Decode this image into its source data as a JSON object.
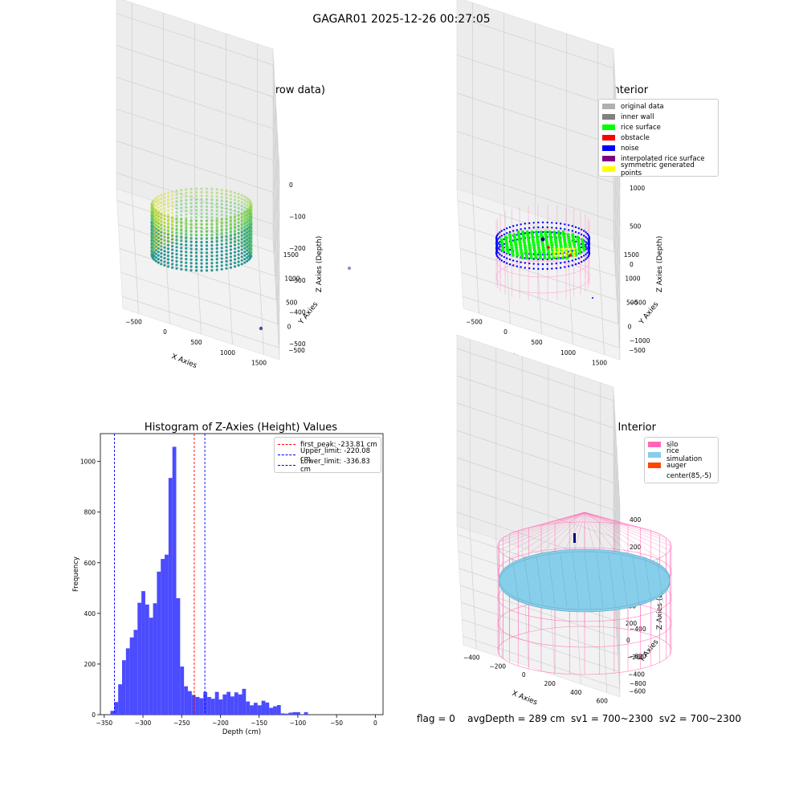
{
  "figure": {
    "suptitle": "GAGAR01 2025-12-26 00:27:05",
    "footer": "flag = 0    avgDepth = 289 cm  sv1 = 700~2300  sv2 = 700~2300"
  },
  "chart_data": [
    {
      "type": "scatter",
      "subtype": "3d",
      "title": "3D Plot of Silo Interior(row data)",
      "xlabel": "X Axies",
      "ylabel": "Y Axies",
      "zlabel": "Z Axies (Depth)",
      "x_ticks": [
        "−500",
        "0",
        "500",
        "1000",
        "1500"
      ],
      "y_ticks": [
        "−500",
        "0",
        "500",
        "1000",
        "1500"
      ],
      "z_ticks": [
        "0",
        "−100",
        "−200",
        "−300",
        "−400",
        "−500"
      ],
      "xlim": [
        -600,
        1600
      ],
      "ylim": [
        -600,
        1800
      ],
      "zlim": [
        -560,
        20
      ],
      "colormap": "viridis",
      "note_values": {
        "ring_depth_range": [
          -460,
          -160
        ],
        "outlier_points": 2
      }
    },
    {
      "type": "scatter",
      "subtype": "3d",
      "title": "3D classify of Silo Interior",
      "xlabel": "X Axies",
      "ylabel": "Y Axies",
      "zlabel": "Z Axies (Depth)",
      "x_ticks": [
        "−500",
        "0",
        "500",
        "1000",
        "1500"
      ],
      "y_ticks": [
        "−500",
        "0",
        "500",
        "1000",
        "1500"
      ],
      "z_ticks": [
        "1000",
        "500",
        "0",
        "−500",
        "−1000"
      ],
      "legend": [
        {
          "label": "original data",
          "color": "#b0b0b0"
        },
        {
          "label": "inner wall",
          "color": "#808080"
        },
        {
          "label": "rice surface",
          "color": "#00ff00"
        },
        {
          "label": "obstacle",
          "color": "#ff0000"
        },
        {
          "label": "noise",
          "color": "#0000ff"
        },
        {
          "label": "interpolated rice surface",
          "color": "#800080"
        },
        {
          "label": "symmetric generated points",
          "color": "#ffff00"
        }
      ],
      "legend_position": "top-right"
    },
    {
      "type": "bar",
      "subtype": "histogram",
      "title": "Histogram of Z-Axies (Height) Values",
      "xlabel": "Depth (cm)",
      "ylabel": "Frequency",
      "xlim": [
        -355,
        10
      ],
      "ylim": [
        0,
        1110
      ],
      "x_ticks": [
        -350,
        -300,
        -250,
        -200,
        -150,
        -100,
        -50,
        0
      ],
      "y_ticks": [
        0,
        200,
        400,
        600,
        800,
        1000
      ],
      "bar_color": "#4b4bff",
      "bin_start": -342,
      "bin_width": 5,
      "values": [
        15,
        50,
        120,
        215,
        262,
        305,
        335,
        442,
        488,
        435,
        383,
        440,
        565,
        615,
        632,
        935,
        1058,
        460,
        190,
        112,
        93,
        78,
        70,
        65,
        90,
        70,
        63,
        90,
        60,
        80,
        90,
        72,
        88,
        80,
        102,
        52,
        37,
        47,
        37,
        55,
        48,
        27,
        33,
        38,
        5,
        4,
        8,
        10,
        10,
        0,
        10
      ],
      "vlines": [
        {
          "label": "first_peak: -233.81 cm",
          "x": -233.81,
          "color": "#ff0000"
        },
        {
          "label": "Upper_limit: -220.08 cm",
          "x": -220.08,
          "color": "#0000ff"
        },
        {
          "label": "Lower_limit: -336.83 cm",
          "x": -336.83,
          "color": "#0000ff"
        }
      ],
      "legend_position": "top-right"
    },
    {
      "type": "surface",
      "subtype": "3d",
      "title": "3D simulation of Silo Interior",
      "xlabel": "X Axies",
      "ylabel": "Y Axies",
      "zlabel": "Z Axies (Depth)",
      "x_ticks": [
        "−400",
        "−200",
        "0",
        "200",
        "400",
        "600"
      ],
      "y_ticks": [
        "−600",
        "−400",
        "−200",
        "0",
        "200",
        "400",
        "600"
      ],
      "z_ticks": [
        "400",
        "200",
        "0",
        "−200",
        "−400",
        "−600",
        "−800"
      ],
      "legend": [
        {
          "label": "silo",
          "color": "#ff69b4"
        },
        {
          "label": "rice simulation",
          "color": "#87ceeb"
        },
        {
          "label": "auger",
          "color": "#ff4500"
        },
        {
          "label": "center(85,-5)",
          "color": "#ffffff"
        }
      ],
      "legend_position": "top-right"
    }
  ]
}
